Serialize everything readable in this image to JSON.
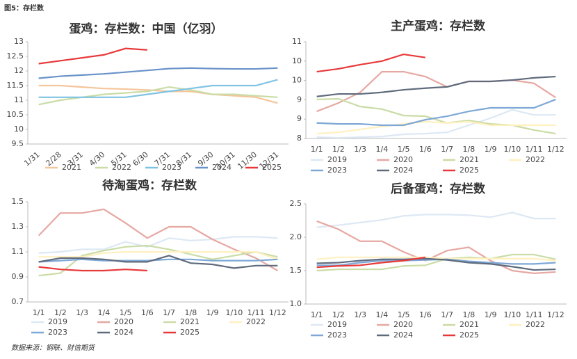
{
  "header": {
    "title": "图5：存栏数"
  },
  "source": "数据来源：钢联、财信期货",
  "chart_data": [
    {
      "type": "line",
      "title": "蛋鸡：存栏数：中国（亿羽）",
      "categories": [
        "1/31",
        "2/28",
        "3/31",
        "4/30",
        "5/31",
        "6/30",
        "7/31",
        "8/31",
        "9/30",
        "10/31",
        "11/30",
        "12/31"
      ],
      "ylim": [
        9.5,
        13
      ],
      "yticks": [
        9.5,
        10,
        10.5,
        11,
        11.5,
        12,
        12.5,
        13
      ],
      "grid": false,
      "series": [
        {
          "name": "2021",
          "color": "#f5c59b",
          "values": [
            11.5,
            11.5,
            11.45,
            11.4,
            11.38,
            11.35,
            11.3,
            11.3,
            11.2,
            11.15,
            11.1,
            10.9
          ]
        },
        {
          "name": "2022",
          "color": "#c9dca5",
          "values": [
            10.85,
            11.0,
            11.1,
            11.2,
            11.25,
            11.3,
            11.45,
            11.35,
            11.2,
            11.2,
            11.15,
            11.1
          ]
        },
        {
          "name": "2023",
          "color": "#7fc3e3",
          "values": [
            11.1,
            11.1,
            11.1,
            11.1,
            11.1,
            11.2,
            11.3,
            11.4,
            11.5,
            11.5,
            11.5,
            11.7
          ]
        },
        {
          "name": "2024",
          "color": "#6a93c9",
          "values": [
            11.75,
            11.82,
            11.86,
            11.9,
            11.96,
            12.02,
            12.08,
            12.1,
            12.08,
            12.07,
            12.07,
            12.1
          ]
        },
        {
          "name": "2025",
          "color": "#e8393a",
          "values": [
            12.25,
            12.35,
            12.45,
            12.55,
            12.77,
            12.72,
            null,
            null,
            null,
            null,
            null,
            null
          ]
        }
      ]
    },
    {
      "type": "line",
      "title": "主产蛋鸡：存栏数",
      "categories": [
        "1/1",
        "1/2",
        "1/3",
        "1/4",
        "1/5",
        "1/6",
        "1/7",
        "1/8",
        "1/9",
        "1/10",
        "1/11",
        "1/12"
      ],
      "ylim": [
        8,
        11
      ],
      "yticks": [
        8,
        {
          "value": 8.6,
          "label": "9"
        },
        {
          "value": 9.2,
          "label": "9"
        },
        {
          "value": 9.8,
          "label": "10"
        },
        {
          "value": 10.4,
          "label": "10"
        },
        11
      ],
      "grid": false,
      "series": [
        {
          "name": "2019",
          "color": "#dde8f4",
          "values": [
            8.04,
            8.02,
            8.04,
            8.06,
            8.13,
            8.15,
            8.19,
            8.41,
            8.63,
            8.89,
            8.73,
            8.73
          ]
        },
        {
          "name": "2020",
          "color": "#e6a8a2",
          "values": [
            8.84,
            9.1,
            9.43,
            10.07,
            10.07,
            9.92,
            9.6,
            9.77,
            9.77,
            9.81,
            9.71,
            9.27
          ]
        },
        {
          "name": "2021",
          "color": "#c9dca5",
          "values": [
            9.21,
            9.23,
            8.99,
            8.91,
            8.71,
            8.69,
            8.48,
            8.56,
            8.45,
            8.41,
            8.26,
            8.15
          ]
        },
        {
          "name": "2022",
          "color": "#fff0c0",
          "values": [
            8.15,
            8.19,
            8.28,
            8.37,
            8.45,
            8.52,
            8.48,
            8.52,
            8.41,
            8.41,
            8.41,
            8.41
          ]
        },
        {
          "name": "2023",
          "color": "#7ea8d6",
          "values": [
            8.48,
            8.45,
            8.45,
            8.41,
            8.41,
            8.58,
            8.69,
            8.84,
            8.95,
            8.95,
            8.95,
            9.21
          ]
        },
        {
          "name": "2024",
          "color": "#5f6b7d",
          "values": [
            9.3,
            9.38,
            9.38,
            9.43,
            9.51,
            9.56,
            9.6,
            9.77,
            9.77,
            9.81,
            9.88,
            9.92
          ]
        },
        {
          "name": "2025",
          "color": "#e8393a",
          "values": [
            10.07,
            10.16,
            10.29,
            10.4,
            10.61,
            10.51,
            null,
            null,
            null,
            null,
            null,
            null
          ]
        }
      ]
    },
    {
      "type": "line",
      "title": "待淘蛋鸡：存栏数",
      "categories": [
        "1/1",
        "1/2",
        "1/3",
        "1/4",
        "1/5",
        "1/6",
        "1/7",
        "1/8",
        "1/9",
        "1/10",
        "1/11",
        "1/12"
      ],
      "ylim": [
        0.7,
        1.5
      ],
      "yticks": [
        0.7,
        0.9,
        1.1,
        1.3,
        1.5
      ],
      "grid": false,
      "series": [
        {
          "name": "2019",
          "color": "#dde8f4",
          "values": [
            1.09,
            1.1,
            1.12,
            1.12,
            1.18,
            1.14,
            1.21,
            1.19,
            1.2,
            1.22,
            1.22,
            1.21
          ]
        },
        {
          "name": "2020",
          "color": "#e6a8a2",
          "values": [
            1.23,
            1.41,
            1.41,
            1.44,
            1.33,
            1.21,
            1.3,
            1.3,
            1.2,
            1.12,
            1.05,
            0.95
          ]
        },
        {
          "name": "2021",
          "color": "#c9dca5",
          "values": [
            0.91,
            0.93,
            1.07,
            1.11,
            1.14,
            1.15,
            1.12,
            1.08,
            1.04,
            1.07,
            1.1,
            1.06
          ]
        },
        {
          "name": "2022",
          "color": "#fff0c0",
          "values": [
            1.06,
            1.06,
            1.06,
            1.09,
            1.1,
            1.1,
            1.1,
            1.1,
            1.1,
            1.1,
            1.1,
            1.04
          ]
        },
        {
          "name": "2023",
          "color": "#7ea8d6",
          "values": [
            1.02,
            1.03,
            1.04,
            1.03,
            1.03,
            1.03,
            1.04,
            1.04,
            1.03,
            1.03,
            1.03,
            1.04
          ]
        },
        {
          "name": "2024",
          "color": "#5f6b7d",
          "values": [
            1.02,
            1.05,
            1.05,
            1.04,
            1.02,
            1.02,
            1.07,
            1.01,
            1.0,
            0.97,
            0.99,
            0.99
          ]
        },
        {
          "name": "2025",
          "color": "#e8393a",
          "values": [
            0.98,
            0.96,
            0.95,
            0.95,
            0.96,
            0.95,
            null,
            null,
            null,
            null,
            null,
            null
          ]
        }
      ]
    },
    {
      "type": "line",
      "title": "后备蛋鸡：存栏数",
      "categories": [
        "1/1",
        "1/2",
        "1/3",
        "1/4",
        "1/5",
        "1/6",
        "1/7",
        "1/8",
        "1/9",
        "1/10",
        "1/11",
        "1/12"
      ],
      "ylim": [
        1,
        2.5
      ],
      "yticks": [
        {
          "value": 1,
          "label": "1.0"
        },
        1.5,
        {
          "value": 2,
          "label": "2.0"
        },
        2.5
      ],
      "grid": false,
      "series": [
        {
          "name": "2019",
          "color": "#dde8f4",
          "values": [
            2.15,
            2.18,
            2.22,
            2.26,
            2.32,
            2.34,
            2.34,
            2.33,
            2.3,
            2.37,
            2.28,
            2.28
          ]
        },
        {
          "name": "2020",
          "color": "#e6a8a2",
          "values": [
            2.24,
            2.12,
            1.94,
            1.94,
            1.78,
            1.65,
            1.8,
            1.85,
            1.65,
            1.5,
            1.46,
            1.48
          ]
        },
        {
          "name": "2021",
          "color": "#c9dca5",
          "values": [
            1.5,
            1.52,
            1.52,
            1.52,
            1.57,
            1.58,
            1.68,
            1.7,
            1.68,
            1.74,
            1.74,
            1.67
          ]
        },
        {
          "name": "2022",
          "color": "#fff0c0",
          "values": [
            1.67,
            1.7,
            1.7,
            1.7,
            1.7,
            1.7,
            1.68,
            1.68,
            1.68,
            1.68,
            1.68,
            1.65
          ]
        },
        {
          "name": "2023",
          "color": "#7ea8d6",
          "values": [
            1.58,
            1.58,
            1.62,
            1.65,
            1.65,
            1.66,
            1.67,
            1.64,
            1.62,
            1.6,
            1.6,
            1.62
          ]
        },
        {
          "name": "2024",
          "color": "#5f6b7d",
          "values": [
            1.61,
            1.62,
            1.65,
            1.67,
            1.67,
            1.68,
            1.66,
            1.62,
            1.6,
            1.56,
            1.51,
            1.52
          ]
        },
        {
          "name": "2025",
          "color": "#e8393a",
          "values": [
            1.55,
            1.57,
            1.58,
            1.62,
            1.65,
            1.7,
            null,
            null,
            null,
            null,
            null,
            null
          ]
        }
      ]
    }
  ]
}
